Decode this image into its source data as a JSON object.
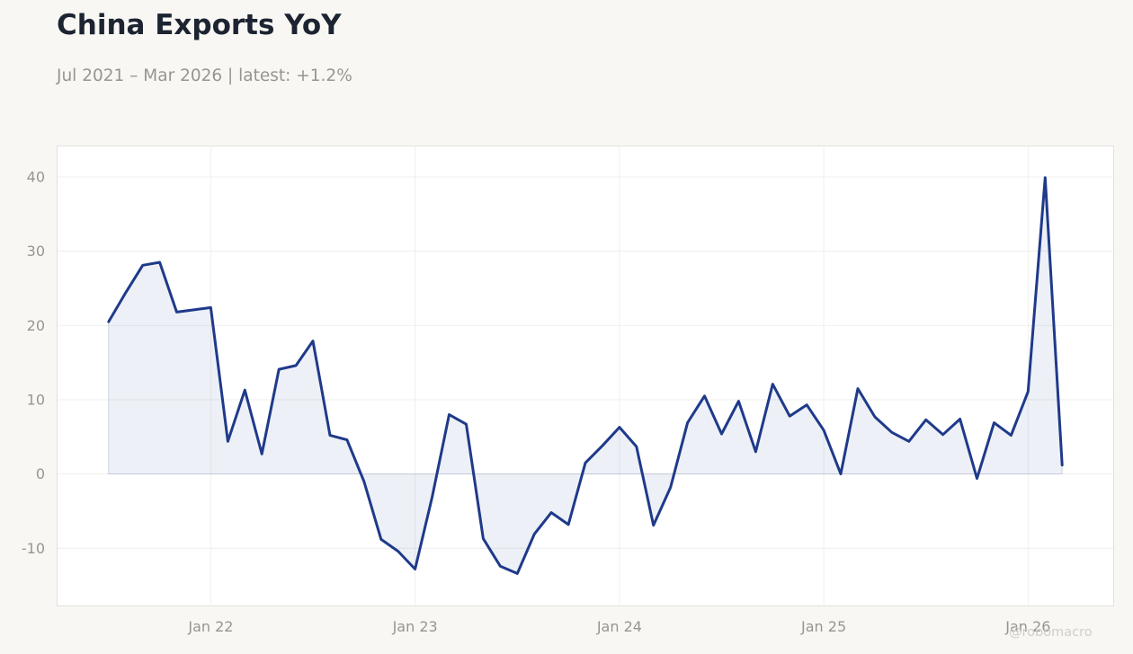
{
  "header": {
    "title": "China Exports YoY",
    "subtitle": "Jul 2021 – Mar 2026 | latest: +1.2%"
  },
  "watermark": "@robomacro",
  "colors": {
    "line": "#1f3a8a",
    "fill": "rgba(31,58,138,0.08)",
    "background": "#f8f7f4",
    "plot_background": "#ffffff",
    "grid": "#ececea",
    "axis_text": "#979592"
  },
  "chart_data": {
    "type": "area",
    "title": "China Exports YoY",
    "xlabel": "",
    "ylabel": "",
    "x_start": "2021-07",
    "x_ticks": [
      {
        "date": "2022-01",
        "label": "Jan 22"
      },
      {
        "date": "2023-01",
        "label": "Jan 23"
      },
      {
        "date": "2024-01",
        "label": "Jan 24"
      },
      {
        "date": "2025-01",
        "label": "Jan 25"
      },
      {
        "date": "2026-01",
        "label": "Jan 26"
      }
    ],
    "y_ticks": [
      -10,
      0,
      10,
      20,
      30,
      40
    ],
    "ylim": [
      -17.7,
      44.1
    ],
    "xlim": [
      "2021-04",
      "2026-06"
    ],
    "grid": true,
    "legend": "none",
    "series": [
      {
        "x": [
          "2021-07",
          "2021-08",
          "2021-09",
          "2021-10",
          "2021-11",
          "2021-12",
          "2022-01",
          "2022-02",
          "2022-03",
          "2022-04",
          "2022-05",
          "2022-06",
          "2022-07",
          "2022-08",
          "2022-09",
          "2022-10",
          "2022-11",
          "2022-12",
          "2023-01",
          "2023-02",
          "2023-03",
          "2023-04",
          "2023-05",
          "2023-06",
          "2023-07",
          "2023-08",
          "2023-09",
          "2023-10",
          "2023-11",
          "2023-12",
          "2024-01",
          "2024-02",
          "2024-03",
          "2024-04",
          "2024-05",
          "2024-06",
          "2024-07",
          "2024-08",
          "2024-09",
          "2024-10",
          "2024-11",
          "2024-12",
          "2025-01",
          "2025-02",
          "2025-03",
          "2025-04",
          "2025-05",
          "2025-06",
          "2025-07",
          "2025-08",
          "2025-09",
          "2025-10",
          "2025-11",
          "2025-12",
          "2026-01",
          "2026-02",
          "2026-03"
        ],
        "values": [
          20.5,
          24.4,
          28.1,
          28.5,
          21.8,
          22.1,
          22.4,
          4.4,
          11.3,
          2.7,
          14.1,
          14.6,
          17.9,
          5.2,
          4.6,
          -1.0,
          -8.8,
          -10.4,
          -12.8,
          -3.1,
          8.0,
          6.7,
          -8.7,
          -12.4,
          -13.4,
          -8.1,
          -5.2,
          -6.8,
          1.5,
          3.8,
          6.3,
          3.7,
          -6.9,
          -1.8,
          6.9,
          10.5,
          5.4,
          9.8,
          3.0,
          12.1,
          7.8,
          9.3,
          5.9,
          0.0,
          11.5,
          7.7,
          5.6,
          4.4,
          7.3,
          5.3,
          7.4,
          -0.6,
          6.9,
          5.2,
          11.1,
          39.9,
          1.2
        ]
      }
    ]
  }
}
